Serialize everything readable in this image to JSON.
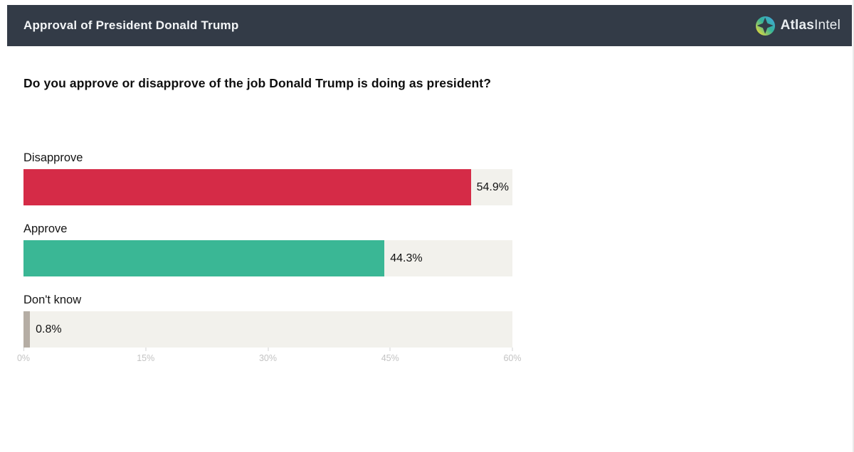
{
  "header": {
    "title": "Approval of President Donald Trump",
    "brand_bold": "Atlas",
    "brand_light": "Intel",
    "logo_icon": "compass-diamond-gradient-circle"
  },
  "colors": {
    "header_bg": "#333b47",
    "track": "#f2f1ec",
    "axis_text": "#c3c3c3",
    "tick_line": "#d2d2d2",
    "logo_blue": "#41a7d9",
    "logo_teal": "#35b39a",
    "logo_yellow": "#ddd83d"
  },
  "chart_data": {
    "type": "bar",
    "orientation": "horizontal",
    "title": "Do you approve or disapprove of the job Donald Trump is doing as president?",
    "categories": [
      "Disapprove",
      "Approve",
      "Don't know"
    ],
    "values": [
      54.9,
      44.3,
      0.8
    ],
    "value_labels": [
      "54.9%",
      "44.3%",
      "0.8%"
    ],
    "bar_colors": [
      "#d52b47",
      "#3ab795",
      "#b5ada4"
    ],
    "xlim": [
      0,
      60
    ],
    "x_ticks": [
      "0%",
      "15%",
      "30%",
      "45%",
      "60%"
    ],
    "x_tick_values": [
      0,
      15,
      30,
      45,
      60
    ],
    "xlabel": "",
    "ylabel": "",
    "grid": false,
    "legend": false
  }
}
